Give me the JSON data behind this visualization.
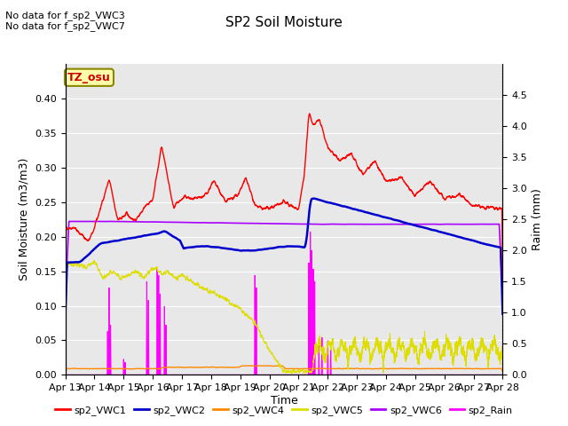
{
  "title": "SP2 Soil Moisture",
  "xlabel": "Time",
  "ylabel_left": "Soil Moisture (m3/m3)",
  "ylabel_right": "Raim (mm)",
  "no_data_text": [
    "No data for f_sp2_VWC3",
    "No data for f_sp2_VWC7"
  ],
  "tz_label": "TZ_osu",
  "ylim_left": [
    0.0,
    0.45
  ],
  "ylim_right": [
    0.0,
    5.0
  ],
  "yticks_left": [
    0.0,
    0.05,
    0.1,
    0.15,
    0.2,
    0.25,
    0.3,
    0.35,
    0.4
  ],
  "yticks_right": [
    0.0,
    0.5,
    1.0,
    1.5,
    2.0,
    2.5,
    3.0,
    3.5,
    4.0,
    4.5
  ],
  "xtick_labels": [
    "Apr 13",
    "Apr 14",
    "Apr 15",
    "Apr 16",
    "Apr 17",
    "Apr 18",
    "Apr 19",
    "Apr 20",
    "Apr 21",
    "Apr 22",
    "Apr 23",
    "Apr 24",
    "Apr 25",
    "Apr 26",
    "Apr 27",
    "Apr 28"
  ],
  "colors": {
    "sp2_VWC1": "#ff0000",
    "sp2_VWC2": "#0000cc",
    "sp2_VWC4": "#ff8800",
    "sp2_VWC5": "#dddd00",
    "sp2_VWC6": "#aa00ff",
    "sp2_Rain": "#ff00ff"
  },
  "legend_labels": [
    "sp2_VWC1",
    "sp2_VWC2",
    "sp2_VWC4",
    "sp2_VWC5",
    "sp2_VWC6",
    "sp2_Rain"
  ],
  "plot_bg_color": "#e8e8e8"
}
